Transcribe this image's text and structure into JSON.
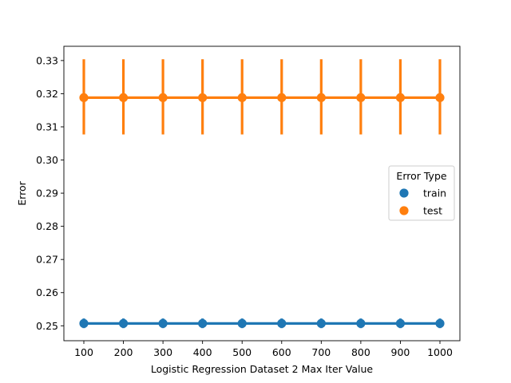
{
  "chart_data": {
    "type": "line",
    "xlabel": "Logistic Regression Dataset 2 Max Iter Value",
    "ylabel": "Error",
    "categories": [
      "100",
      "200",
      "300",
      "400",
      "500",
      "600",
      "700",
      "800",
      "900",
      "1000"
    ],
    "ylim": [
      0.2455,
      0.3343
    ],
    "yticks": [
      "0.25",
      "0.26",
      "0.27",
      "0.28",
      "0.29",
      "0.30",
      "0.31",
      "0.32",
      "0.33"
    ],
    "grid": false,
    "legend": {
      "title": "Error Type",
      "placement": "center-right"
    },
    "series": [
      {
        "name": "train",
        "color": "#1f77b4",
        "values": [
          0.2507,
          0.2507,
          0.2507,
          0.2507,
          0.2507,
          0.2507,
          0.2507,
          0.2507,
          0.2507,
          0.2507
        ],
        "err_low": [
          0.2493,
          0.2493,
          0.2493,
          0.2493,
          0.2493,
          0.2493,
          0.2493,
          0.2493,
          0.2493,
          0.2493
        ],
        "err_high": [
          0.2522,
          0.2522,
          0.2522,
          0.2522,
          0.2522,
          0.2522,
          0.2522,
          0.2522,
          0.2522,
          0.2522
        ]
      },
      {
        "name": "test",
        "color": "#ff7f0e",
        "values": [
          0.3188,
          0.3188,
          0.3188,
          0.3188,
          0.3188,
          0.3188,
          0.3188,
          0.3188,
          0.3188,
          0.3188
        ],
        "err_low": [
          0.3077,
          0.3077,
          0.3077,
          0.3077,
          0.3077,
          0.3077,
          0.3077,
          0.3077,
          0.3077,
          0.3077
        ],
        "err_high": [
          0.3304,
          0.3304,
          0.3304,
          0.3304,
          0.3304,
          0.3304,
          0.3304,
          0.3304,
          0.3304,
          0.3304
        ]
      }
    ]
  }
}
